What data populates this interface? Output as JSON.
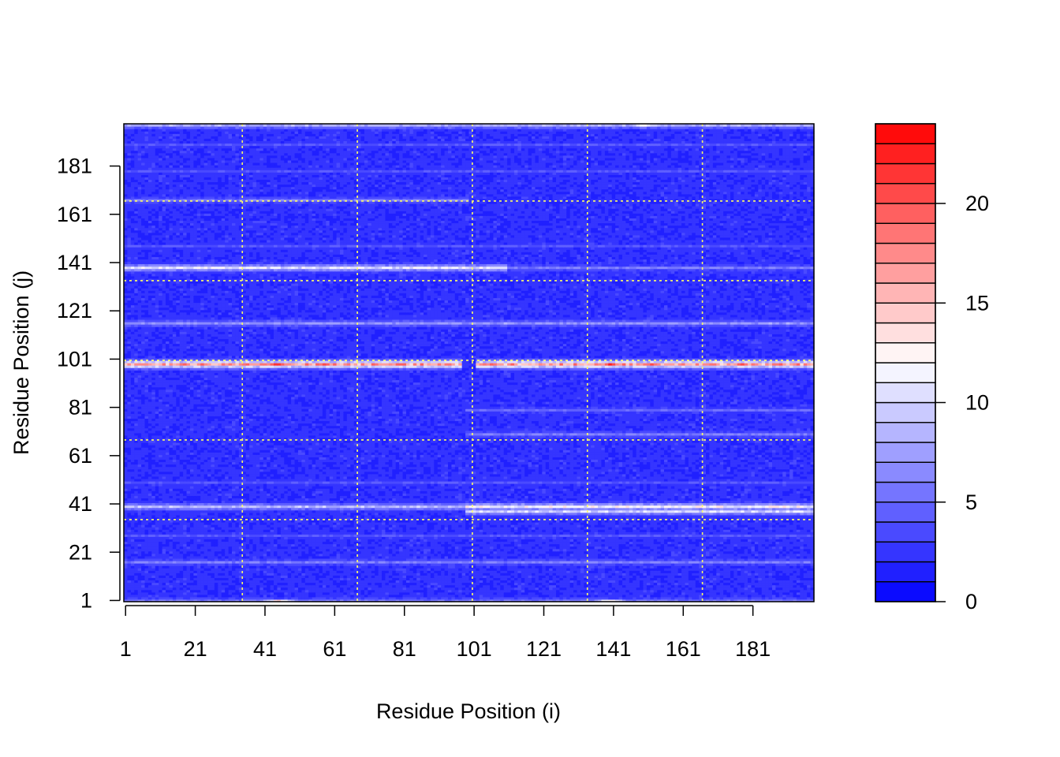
{
  "chart_data": {
    "type": "heatmap",
    "title": "",
    "xlabel": "Residue Position (i)",
    "ylabel": "Residue Position (j)",
    "x_range": [
      1,
      198
    ],
    "y_range": [
      1,
      198
    ],
    "x_ticks": [
      "1",
      "21",
      "41",
      "61",
      "81",
      "101",
      "121",
      "141",
      "161",
      "181"
    ],
    "y_ticks": [
      "1",
      "21",
      "41",
      "61",
      "81",
      "101",
      "121",
      "141",
      "161",
      "181"
    ],
    "x_tick_values": [
      1,
      21,
      41,
      61,
      81,
      101,
      121,
      141,
      161,
      181
    ],
    "y_tick_values": [
      1,
      21,
      41,
      61,
      81,
      101,
      121,
      141,
      161,
      181
    ],
    "reference_lines_x": [
      34,
      67,
      100,
      133,
      166
    ],
    "reference_lines_y": [
      34,
      67,
      100,
      133,
      166
    ],
    "reference_line_color": "#ffff66",
    "colorbar": {
      "min": 0,
      "max": 24,
      "levels": 24,
      "ticks": [
        0,
        5,
        10,
        15,
        20
      ],
      "tick_labels": [
        "0",
        "5",
        "10",
        "15",
        "20"
      ],
      "colors": [
        "#0000ff",
        "#ffffff",
        "#ff0000"
      ],
      "white_value": 12
    },
    "background_value": 1.5,
    "features": [
      {
        "orientation": "row",
        "position": 1,
        "from": 1,
        "to": 198,
        "value": 6
      },
      {
        "orientation": "row",
        "position": 198,
        "from": 1,
        "to": 198,
        "value": 8
      },
      {
        "orientation": "row",
        "position": 17,
        "from": 1,
        "to": 198,
        "value": 6
      },
      {
        "orientation": "row",
        "position": 28,
        "from": 1,
        "to": 198,
        "value": 4
      },
      {
        "orientation": "row",
        "position": 40,
        "from": 1,
        "to": 98,
        "value": 9
      },
      {
        "orientation": "row",
        "position": 40,
        "from": 99,
        "to": 198,
        "value": 12
      },
      {
        "orientation": "row",
        "position": 38,
        "from": 99,
        "to": 198,
        "value": 10
      },
      {
        "orientation": "row",
        "position": 50,
        "from": 1,
        "to": 198,
        "value": 4
      },
      {
        "orientation": "row",
        "position": 70,
        "from": 99,
        "to": 198,
        "value": 6
      },
      {
        "orientation": "row",
        "position": 80,
        "from": 99,
        "to": 198,
        "value": 5
      },
      {
        "orientation": "row",
        "position": 99,
        "from": 1,
        "to": 97,
        "value": 17
      },
      {
        "orientation": "row",
        "position": 99,
        "from": 102,
        "to": 198,
        "value": 17
      },
      {
        "orientation": "row",
        "position": 116,
        "from": 1,
        "to": 198,
        "value": 7
      },
      {
        "orientation": "row",
        "position": 139,
        "from": 1,
        "to": 110,
        "value": 11
      },
      {
        "orientation": "row",
        "position": 139,
        "from": 111,
        "to": 198,
        "value": 6
      },
      {
        "orientation": "row",
        "position": 148,
        "from": 1,
        "to": 198,
        "value": 4
      },
      {
        "orientation": "row",
        "position": 167,
        "from": 1,
        "to": 99,
        "value": 6
      },
      {
        "orientation": "row",
        "position": 179,
        "from": 1,
        "to": 198,
        "value": 4
      },
      {
        "orientation": "row",
        "position": 190,
        "from": 1,
        "to": 198,
        "value": 4
      }
    ],
    "hotspots": [
      {
        "x": 45,
        "y": 99,
        "value": 23
      },
      {
        "x": 58,
        "y": 99,
        "value": 22
      },
      {
        "x": 80,
        "y": 99,
        "value": 21
      },
      {
        "x": 140,
        "y": 99,
        "value": 22
      },
      {
        "x": 152,
        "y": 99,
        "value": 22
      },
      {
        "x": 178,
        "y": 99,
        "value": 21
      },
      {
        "x": 36,
        "y": 99,
        "value": 19
      },
      {
        "x": 120,
        "y": 99,
        "value": 17
      },
      {
        "x": 45,
        "y": 1,
        "value": 15
      },
      {
        "x": 140,
        "y": 1,
        "value": 14
      },
      {
        "x": 150,
        "y": 198,
        "value": 13
      }
    ]
  }
}
